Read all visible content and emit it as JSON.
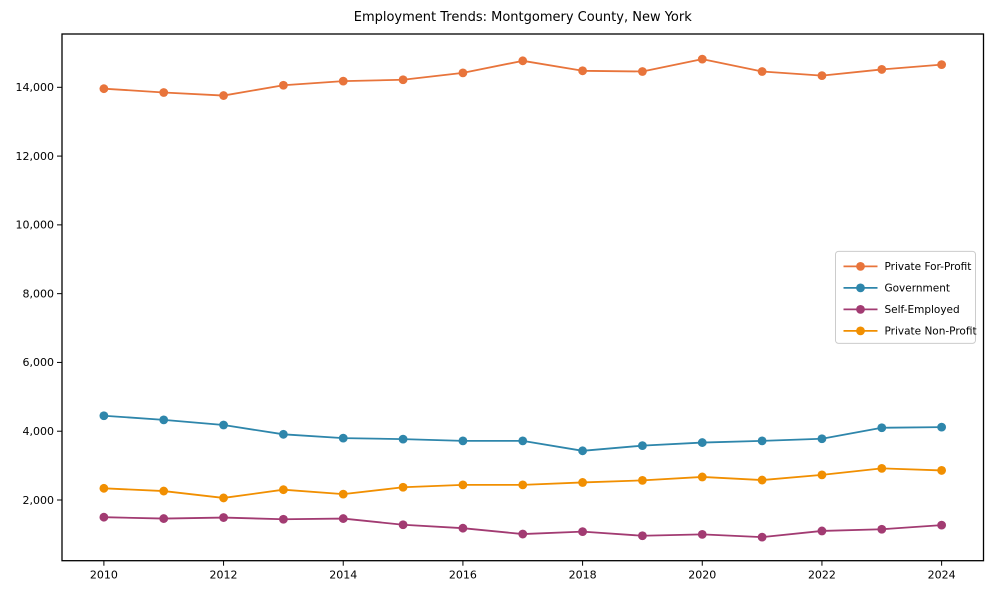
{
  "page": {
    "title": "Employment Trends: Montgomery County, New York"
  },
  "chart_data": {
    "type": "line",
    "title": "Employment Trends: Montgomery County, New York",
    "xlabel": "",
    "ylabel": "",
    "grid": false,
    "legend_position": "center-right",
    "x": [
      2010,
      2011,
      2012,
      2013,
      2014,
      2015,
      2016,
      2017,
      2018,
      2019,
      2020,
      2021,
      2022,
      2023,
      2024
    ],
    "x_ticks": [
      2010,
      2012,
      2014,
      2016,
      2018,
      2020,
      2022,
      2024
    ],
    "x_tick_labels": [
      "2010",
      "2012",
      "2014",
      "2016",
      "2018",
      "2020",
      "2022",
      "2024"
    ],
    "y_ticks": [
      2000,
      4000,
      6000,
      8000,
      10000,
      12000,
      14000
    ],
    "y_tick_labels": [
      "2,000",
      "4,000",
      "6,000",
      "8,000",
      "10,000",
      "12,000",
      "14,000"
    ],
    "xlim": [
      2009.3,
      2024.7
    ],
    "ylim": [
      235,
      15550
    ],
    "series": [
      {
        "name": "Private For-Profit",
        "color": "#E8743B",
        "values": [
          13960,
          13850,
          13760,
          14060,
          14180,
          14220,
          14420,
          14770,
          14480,
          14460,
          14820,
          14460,
          14340,
          14520,
          14660
        ]
      },
      {
        "name": "Government",
        "color": "#2E86AB",
        "values": [
          4450,
          4330,
          4180,
          3910,
          3800,
          3770,
          3720,
          3720,
          3430,
          3580,
          3670,
          3720,
          3780,
          4100,
          4120
        ]
      },
      {
        "name": "Self-Employed",
        "color": "#A23B72",
        "values": [
          1500,
          1460,
          1490,
          1440,
          1460,
          1280,
          1180,
          1010,
          1080,
          960,
          1000,
          920,
          1100,
          1150,
          1270
        ]
      },
      {
        "name": "Private Non-Profit",
        "color": "#F18F01",
        "values": [
          2340,
          2260,
          2060,
          2300,
          2170,
          2370,
          2440,
          2440,
          2510,
          2570,
          2670,
          2580,
          2730,
          2920,
          2860
        ]
      }
    ]
  }
}
